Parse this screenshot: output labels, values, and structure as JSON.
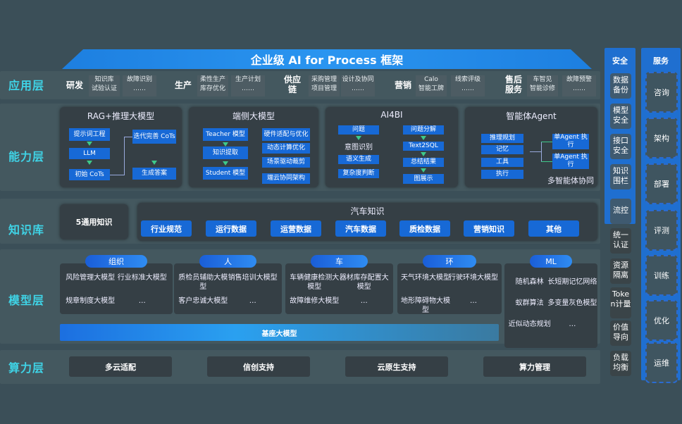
{
  "title": "企业级 AI for Process 框架",
  "layers": [
    "应用层",
    "能力层",
    "知识库",
    "模型层",
    "算力层"
  ],
  "application": [
    {
      "name": "研发",
      "boxes": [
        [
          "知识库",
          "试验认证"
        ],
        [
          "故障识别",
          "……"
        ]
      ]
    },
    {
      "name": "生产",
      "boxes": [
        [
          "柔性生产",
          "库存优化"
        ],
        [
          "生产计划",
          "……"
        ]
      ]
    },
    {
      "name": "供应链",
      "boxes": [
        [
          "采购管理",
          "项目管理"
        ],
        [
          "设计及协同",
          "……"
        ]
      ]
    },
    {
      "name": "营销",
      "boxes": [
        [
          "Calo",
          "智能工牌"
        ],
        [
          "线索评级",
          "……"
        ]
      ]
    },
    {
      "name": "售后服务",
      "boxes": [
        [
          "车智见",
          "智能诊修"
        ],
        [
          "故障预警",
          "……"
        ]
      ]
    }
  ],
  "capability": {
    "rag": {
      "title": "RAG+推理大模型",
      "items": [
        "提示词工程",
        "LLM",
        "初始 CoTs",
        "迭代完善 CoTs",
        "生成答案"
      ]
    },
    "edge": {
      "title": "端侧大模型",
      "items": [
        "Teacher 模型",
        "知识提取",
        "Student 模型",
        "硬件适配与优化",
        "动态计算优化",
        "场景驱动裁剪",
        "端云协同架构"
      ]
    },
    "ai4bi": {
      "title": "AI4BI",
      "items": [
        "问题",
        "意图识别",
        "语义生成",
        "复杂度判断",
        "问题分解",
        "Text2SQL",
        "总结结果",
        "图展示"
      ]
    },
    "agent": {
      "title": "智能体Agent",
      "items": [
        "推理规划",
        "记忆",
        "工具",
        "执行",
        "单Agent 执行",
        "单Agent 执行"
      ],
      "footer": "多智能体协同"
    }
  },
  "knowledge": {
    "general": "5通用知识",
    "auto_title": "汽车知识",
    "chips": [
      "行业规范",
      "运行数据",
      "运营数据",
      "汽车数据",
      "质检数据",
      "营销知识",
      "其他"
    ]
  },
  "models": [
    {
      "name": "组织",
      "items": [
        "风险管理大模型",
        "行业标准大模型",
        "规章制度大模型",
        "…"
      ]
    },
    {
      "name": "人",
      "items": [
        "质检员辅助大模型",
        "销售培训大模型",
        "客户忠诚大模型",
        "…"
      ]
    },
    {
      "name": "车",
      "items": [
        "车辆健康检测大模型",
        "器材库存配置大模型",
        "故障维修大模型",
        "…"
      ]
    },
    {
      "name": "环",
      "items": [
        "天气环境大模型",
        "行驶环境大模型",
        "地形障碍物大模型",
        "…"
      ]
    },
    {
      "name": "ML",
      "items": [
        "随机森林",
        "长短期记忆网络",
        "蚁群算法",
        "多变量灰色模型",
        "近似动态规划",
        "…"
      ]
    }
  ],
  "base_model": "基座大模型",
  "compute": [
    "多云适配",
    "信创支持",
    "云原生支持",
    "算力管理"
  ],
  "security": {
    "title": "安全",
    "items": [
      "数据备份",
      "模型安全",
      "接口安全",
      "知识围栏",
      "流控",
      "统一认证",
      "资源隔离",
      "Token计量",
      "价值导向",
      "负载均衡"
    ]
  },
  "service": {
    "title": "服务",
    "items": [
      "咨询",
      "架构",
      "部署",
      "评测",
      "训练",
      "优化",
      "运维"
    ]
  },
  "colors": {
    "background": "#3b4f58",
    "accent_blue": "#1769d6",
    "layer_label": "#3fd3e6",
    "arrow": "#3ec98a"
  }
}
